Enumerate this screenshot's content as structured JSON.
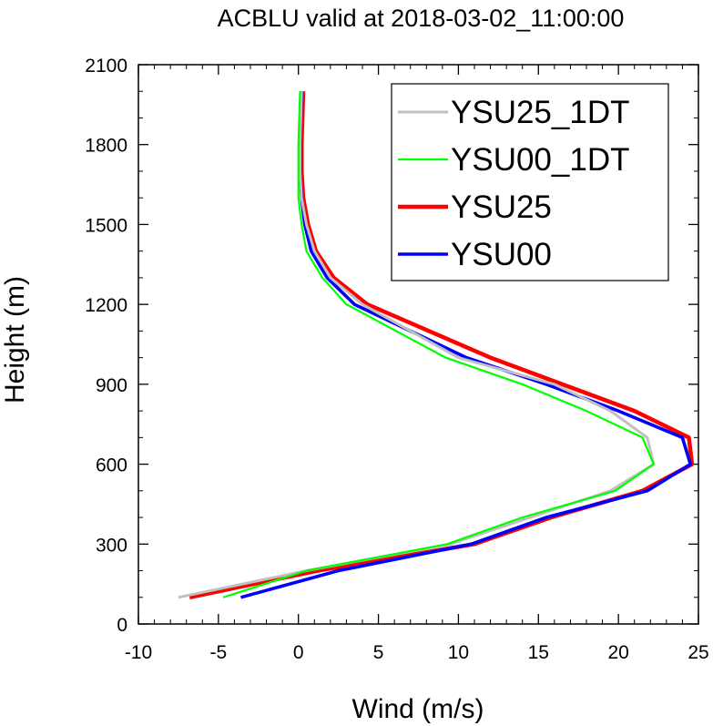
{
  "chart_data": {
    "type": "line",
    "title": "ACBLU valid at 2018-03-02_11:00:00",
    "xlabel": "Wind (m/s)",
    "ylabel": "Height (m)",
    "xlim": [
      -10,
      25
    ],
    "ylim": [
      0,
      2100
    ],
    "xticks": [
      -10,
      -5,
      0,
      5,
      10,
      15,
      20,
      25
    ],
    "yticks": [
      0,
      300,
      600,
      900,
      1200,
      1500,
      1800,
      2100
    ],
    "xtick_labels": [
      "-10",
      "-5",
      "0",
      "5",
      "10",
      "15",
      "20",
      "25"
    ],
    "ytick_labels": [
      "0",
      "300",
      "600",
      "900",
      "1200",
      "1500",
      "1800",
      "2100"
    ],
    "grid": false,
    "legend_position": "top-right",
    "series": [
      {
        "name": "YSU25_1DT",
        "color": "#c0c0c0",
        "x": [
          -7.5,
          0.5,
          9.5,
          14.5,
          19.5,
          22.2,
          21.8,
          19.5,
          16,
          10,
          4,
          2,
          1,
          0.5,
          0.2,
          0.1,
          0.1,
          0.2
        ],
        "y": [
          100,
          200,
          300,
          400,
          500,
          600,
          700,
          800,
          900,
          1000,
          1200,
          1300,
          1400,
          1500,
          1600,
          1700,
          1800,
          2000
        ]
      },
      {
        "name": "YSU00_1DT",
        "color": "#00ff00",
        "x": [
          -4.7,
          0.5,
          9.3,
          14,
          19.8,
          22.2,
          21.5,
          18,
          14,
          9.2,
          3,
          1.5,
          0.5,
          0.2,
          0,
          0,
          0,
          0.1
        ],
        "y": [
          100,
          200,
          300,
          400,
          500,
          600,
          700,
          800,
          900,
          1000,
          1200,
          1300,
          1400,
          1500,
          1600,
          1700,
          1800,
          2000
        ]
      },
      {
        "name": "YSU25",
        "color": "#ff0000",
        "x": [
          -6.8,
          1.2,
          11,
          15.8,
          21.5,
          24.6,
          24.4,
          21,
          16.5,
          12,
          4.3,
          2.2,
          1.1,
          0.6,
          0.3,
          0.2,
          0.2,
          0.3
        ],
        "y": [
          100,
          200,
          300,
          400,
          500,
          600,
          700,
          800,
          900,
          1000,
          1200,
          1300,
          1400,
          1500,
          1600,
          1700,
          1800,
          2000
        ]
      },
      {
        "name": "YSU00",
        "color": "#0000ff",
        "x": [
          -3.6,
          2.5,
          10.8,
          15.5,
          21.8,
          24.5,
          24,
          20,
          15.5,
          10.5,
          3.5,
          1.8,
          0.8,
          0.4,
          0.2,
          0.1,
          0.1,
          0.2
        ],
        "y": [
          100,
          200,
          300,
          400,
          500,
          600,
          700,
          800,
          900,
          1000,
          1200,
          1300,
          1400,
          1500,
          1600,
          1700,
          1800,
          2000
        ]
      }
    ]
  }
}
